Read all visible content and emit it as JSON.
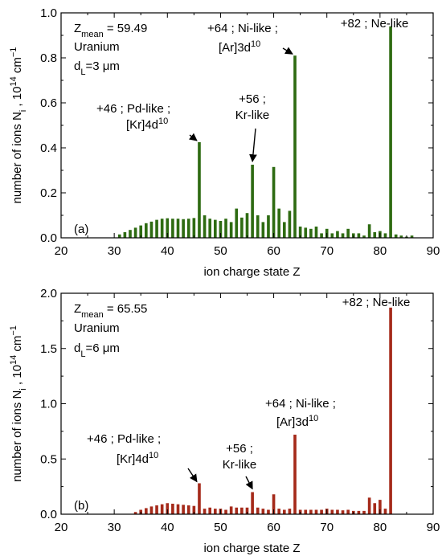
{
  "chart_data": [
    {
      "panel": "(a)",
      "type": "bar",
      "color": "#2e6b12",
      "xlabel": "ion charge state Z",
      "ylabel": "number of ions N_i , 10^14 cm^-1",
      "xlim": [
        20,
        90
      ],
      "ylim": [
        0,
        1.0
      ],
      "xticks": [
        20,
        30,
        40,
        50,
        60,
        70,
        80,
        90
      ],
      "yticks": [
        "0.0",
        "0.2",
        "0.4",
        "0.6",
        "0.8",
        "1.0"
      ],
      "info": [
        "Z_mean = 59.49",
        "Uranium",
        "d_L=3 μm"
      ],
      "x": [
        31,
        32,
        33,
        34,
        35,
        36,
        37,
        38,
        39,
        40,
        41,
        42,
        43,
        44,
        45,
        46,
        47,
        48,
        49,
        50,
        51,
        52,
        53,
        54,
        55,
        56,
        57,
        58,
        59,
        60,
        61,
        62,
        63,
        64,
        65,
        66,
        67,
        68,
        69,
        70,
        71,
        72,
        73,
        74,
        75,
        76,
        77,
        78,
        79,
        80,
        81,
        82,
        83,
        84,
        85,
        86
      ],
      "values": [
        0.015,
        0.025,
        0.035,
        0.045,
        0.055,
        0.065,
        0.072,
        0.08,
        0.085,
        0.087,
        0.085,
        0.085,
        0.083,
        0.085,
        0.088,
        0.425,
        0.1,
        0.085,
        0.08,
        0.075,
        0.085,
        0.07,
        0.13,
        0.09,
        0.11,
        0.325,
        0.1,
        0.07,
        0.1,
        0.315,
        0.13,
        0.07,
        0.12,
        0.81,
        0.05,
        0.045,
        0.04,
        0.05,
        0.02,
        0.04,
        0.02,
        0.03,
        0.02,
        0.04,
        0.02,
        0.02,
        0.01,
        0.06,
        0.025,
        0.03,
        0.02,
        0.94,
        0.015,
        0.01,
        0.005,
        0.01
      ],
      "annotations": [
        {
          "lines": [
            "+46 ; Pd-like ;",
            "[Kr]4d10"
          ],
          "x": 46,
          "y": 0.425
        },
        {
          "lines": [
            "+56 ;",
            "Kr-like"
          ],
          "x": 56,
          "y": 0.325
        },
        {
          "lines": [
            "+64 ; Ni-like ;",
            "[Ar]3d10"
          ],
          "x": 64,
          "y": 0.81
        },
        {
          "lines": [
            "+82 ; Ne-like"
          ],
          "x": 82,
          "y": 0.94
        }
      ]
    },
    {
      "panel": "(b)",
      "type": "bar",
      "color": "#a52a1a",
      "xlabel": "ion charge state Z",
      "ylabel": "number of ions N_i , 10^14 cm^-1",
      "xlim": [
        20,
        90
      ],
      "ylim": [
        0,
        2.0
      ],
      "xticks": [
        20,
        30,
        40,
        50,
        60,
        70,
        80,
        90
      ],
      "yticks": [
        "0.0",
        "0.5",
        "1.0",
        "1.5",
        "2.0"
      ],
      "info": [
        "Z_mean = 65.55",
        "Uranium",
        "d_L=6 μm"
      ],
      "x": [
        34,
        35,
        36,
        37,
        38,
        39,
        40,
        41,
        42,
        43,
        44,
        45,
        46,
        47,
        48,
        49,
        50,
        51,
        52,
        53,
        54,
        55,
        56,
        57,
        58,
        59,
        60,
        61,
        62,
        63,
        64,
        65,
        66,
        67,
        68,
        69,
        70,
        71,
        72,
        73,
        74,
        75,
        76,
        77,
        78,
        79,
        80,
        81,
        82
      ],
      "values": [
        0.02,
        0.04,
        0.055,
        0.07,
        0.08,
        0.09,
        0.1,
        0.095,
        0.09,
        0.085,
        0.08,
        0.075,
        0.28,
        0.05,
        0.06,
        0.05,
        0.05,
        0.04,
        0.07,
        0.06,
        0.06,
        0.06,
        0.2,
        0.06,
        0.05,
        0.04,
        0.18,
        0.05,
        0.04,
        0.05,
        0.72,
        0.04,
        0.04,
        0.04,
        0.04,
        0.04,
        0.05,
        0.04,
        0.04,
        0.035,
        0.04,
        0.03,
        0.03,
        0.03,
        0.15,
        0.1,
        0.13,
        0.05,
        1.87
      ],
      "annotations": [
        {
          "lines": [
            "+46 ; Pd-like ;",
            "[Kr]4d10"
          ],
          "x": 46,
          "y": 0.28
        },
        {
          "lines": [
            "+56 ;",
            "Kr-like"
          ],
          "x": 56,
          "y": 0.2
        },
        {
          "lines": [
            "+64 ; Ni-like ;",
            "[Ar]3d10"
          ],
          "x": 64,
          "y": 0.72
        },
        {
          "lines": [
            "+82 ; Ne-like"
          ],
          "x": 82,
          "y": 1.87
        }
      ]
    }
  ]
}
